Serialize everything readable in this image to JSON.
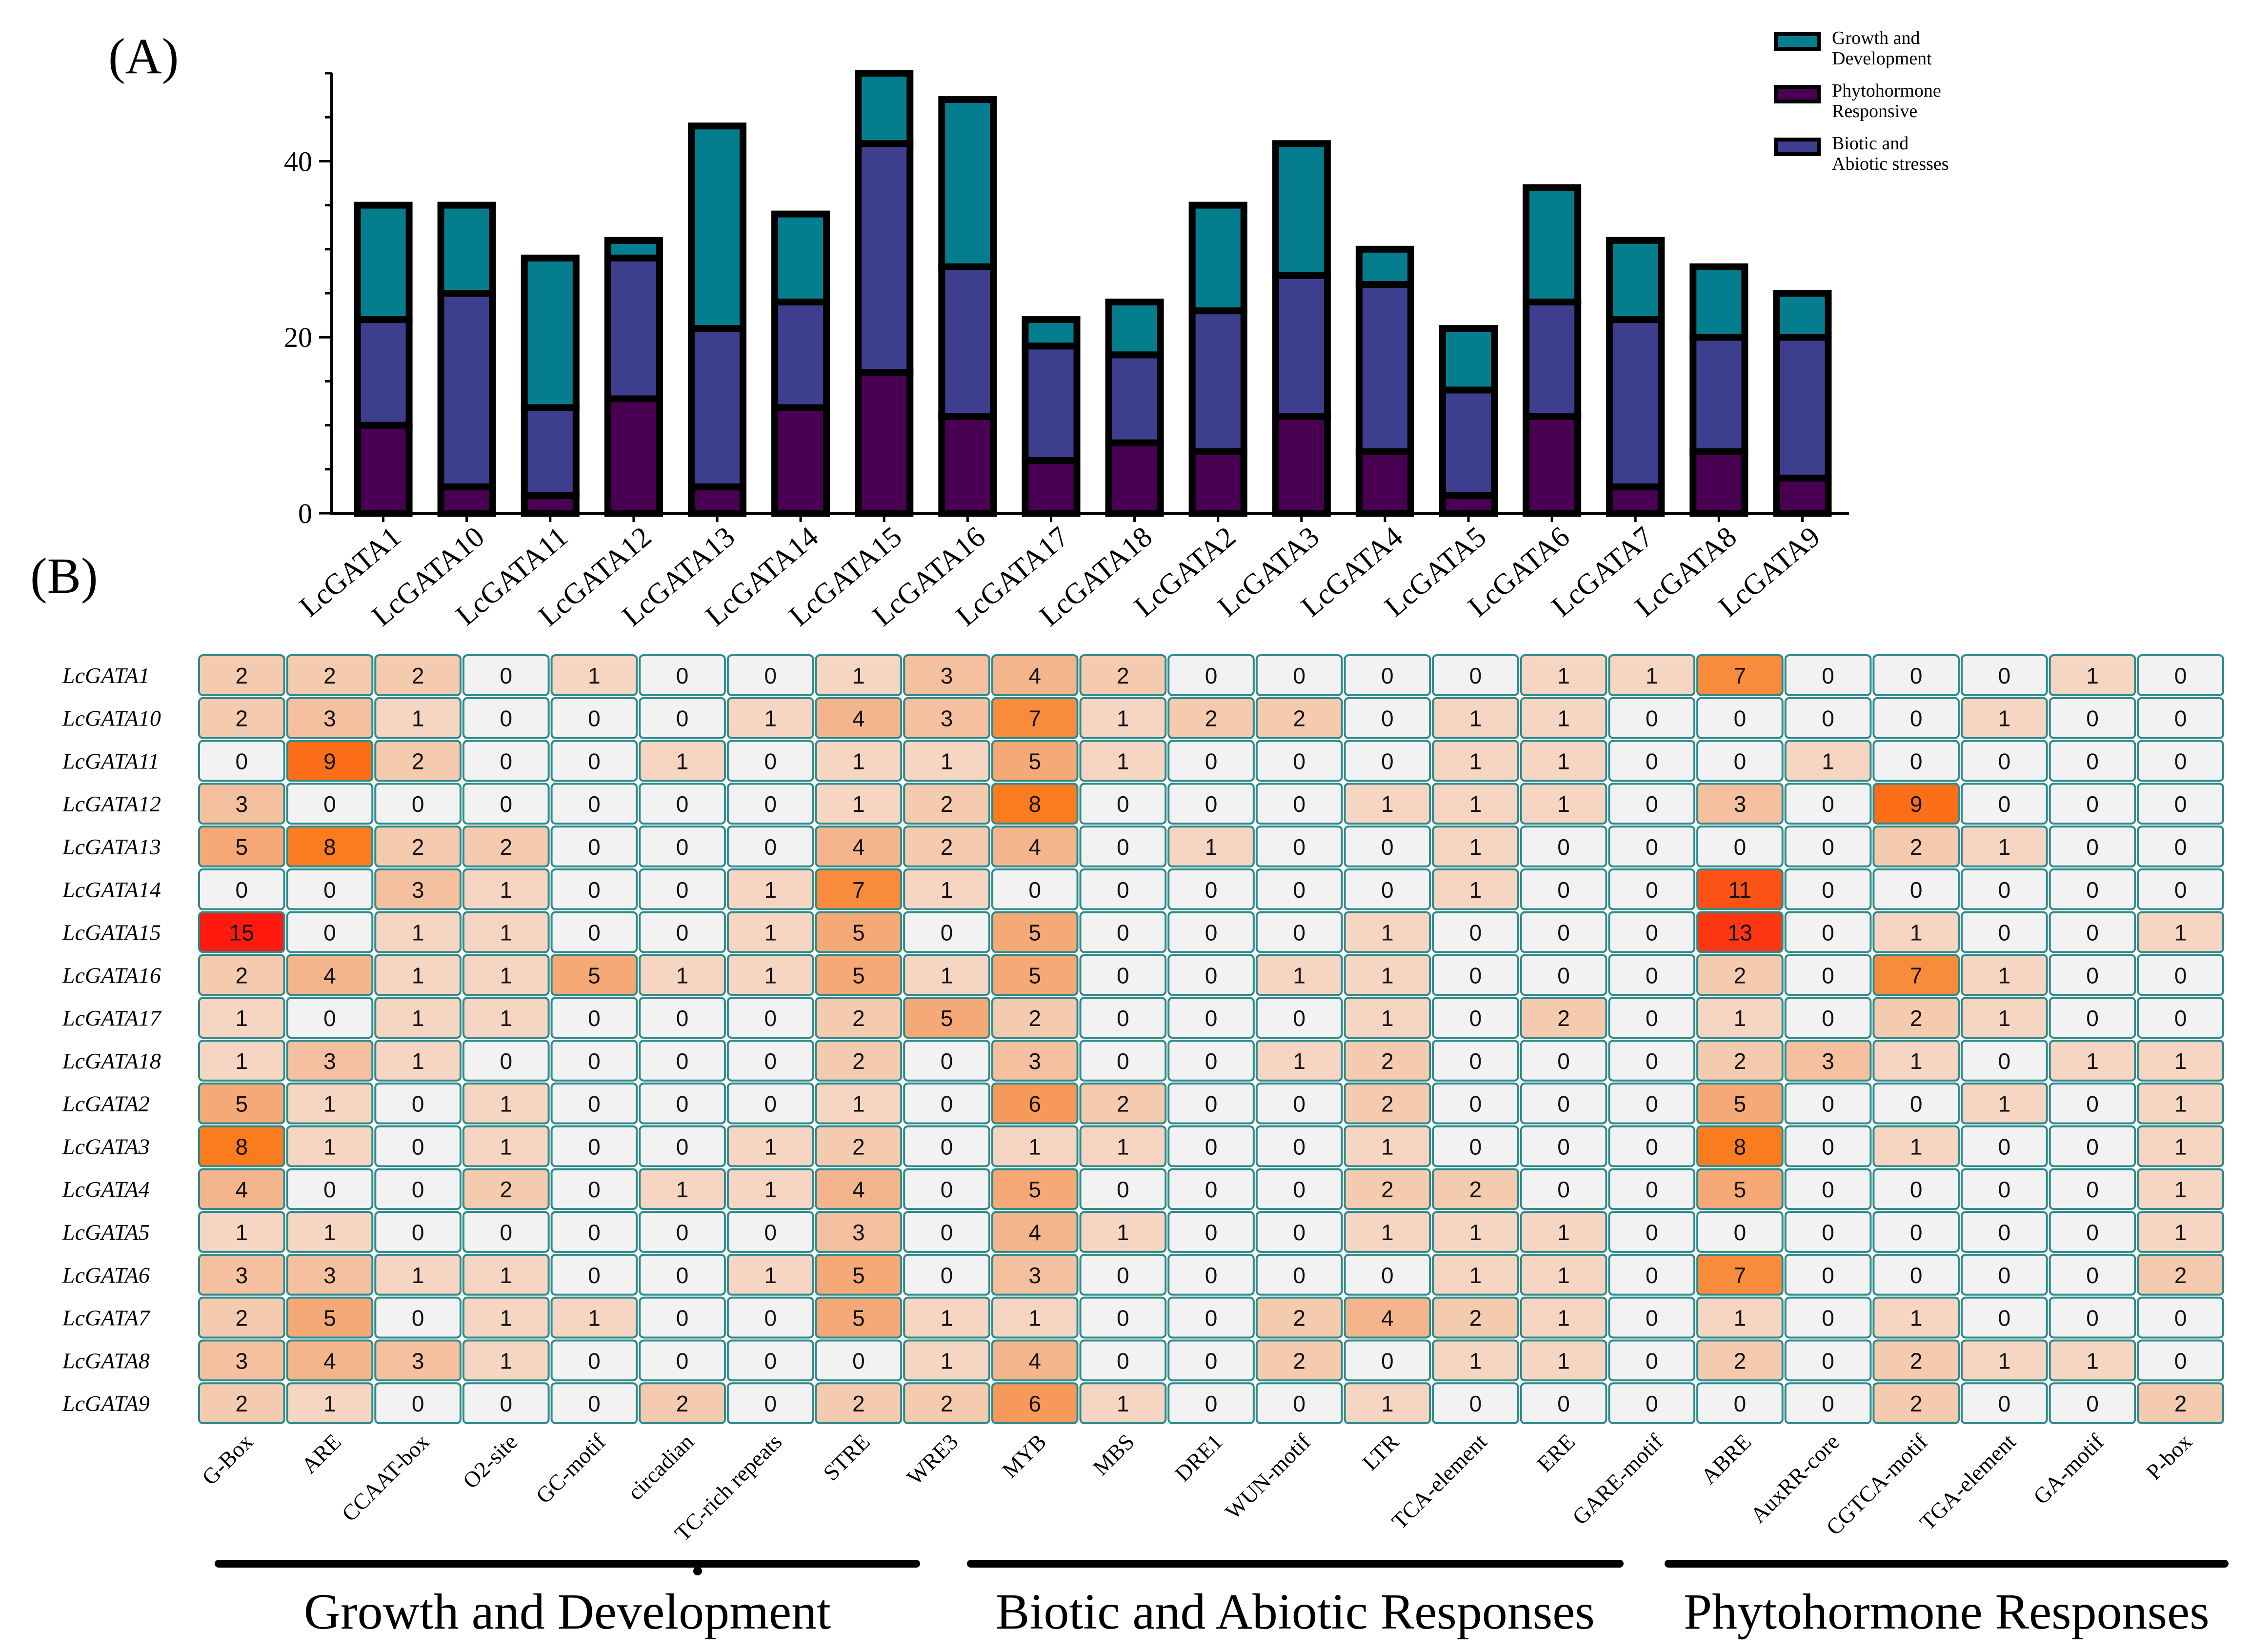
{
  "panel_a_label": "(A)",
  "panel_b_label": "(B)",
  "colors": {
    "growth": "#047e8e",
    "biotic": "#3d3f8e",
    "phyto": "#4a0052",
    "border": "#000000",
    "cell_border": "#2d8a8a",
    "heat_low": "#f2f2f2",
    "heat_high": "#ff1a10"
  },
  "chart_data": [
    {
      "type": "bar",
      "stacked": true,
      "title": "",
      "categories": [
        "LcGATA1",
        "LcGATA10",
        "LcGATA11",
        "LcGATA12",
        "LcGATA13",
        "LcGATA14",
        "LcGATA15",
        "LcGATA16",
        "LcGATA17",
        "LcGATA18",
        "LcGATA2",
        "LcGATA3",
        "LcGATA4",
        "LcGATA5",
        "LcGATA6",
        "LcGATA7",
        "LcGATA8",
        "LcGATA9"
      ],
      "series": [
        {
          "name": "Phytohormone Responsive",
          "key": "phyto",
          "values": [
            10,
            3,
            2,
            13,
            3,
            12,
            16,
            11,
            6,
            8,
            7,
            11,
            7,
            2,
            11,
            3,
            7,
            4
          ]
        },
        {
          "name": "Biotic and Abiotic stresses",
          "key": "biotic",
          "values": [
            12,
            22,
            10,
            16,
            18,
            12,
            26,
            17,
            13,
            10,
            16,
            16,
            19,
            12,
            13,
            19,
            13,
            16
          ]
        },
        {
          "name": "Growth and Development",
          "key": "growth",
          "values": [
            13,
            10,
            17,
            2,
            23,
            10,
            8,
            19,
            3,
            6,
            12,
            15,
            4,
            7,
            13,
            9,
            8,
            5
          ]
        }
      ],
      "legend": [
        {
          "key": "growth",
          "line1": "Growth and",
          "line2": "Development"
        },
        {
          "key": "phyto",
          "line1": "Phytohormone",
          "line2": "Responsive"
        },
        {
          "key": "biotic",
          "line1": "Biotic and",
          "line2": "Abiotic stresses"
        }
      ],
      "legend_position": "top-right",
      "yticks": [
        0,
        20,
        40
      ],
      "ylim": [
        0,
        50
      ],
      "xlabel": "",
      "ylabel": ""
    },
    {
      "type": "heatmap",
      "rows": [
        "LcGATA1",
        "LcGATA10",
        "LcGATA11",
        "LcGATA12",
        "LcGATA13",
        "LcGATA14",
        "LcGATA15",
        "LcGATA16",
        "LcGATA17",
        "LcGATA18",
        "LcGATA2",
        "LcGATA3",
        "LcGATA4",
        "LcGATA5",
        "LcGATA6",
        "LcGATA7",
        "LcGATA8",
        "LcGATA9"
      ],
      "columns": [
        "G-Box",
        "ARE",
        "CCAAT-box",
        "O2-site",
        "GC-motif",
        "circadian",
        "TC-rich repeats",
        "STRE",
        "WRE3",
        "MYB",
        "MBS",
        "DRE1",
        "WUN-motif",
        "LTR",
        "TCA-element",
        "ERE",
        "GARE-motif",
        "ABRE",
        "AuxRR-core",
        "CGTCA-motif",
        "TGA-element",
        "GA-motif",
        "P-box"
      ],
      "values": [
        [
          2,
          2,
          2,
          0,
          1,
          0,
          0,
          1,
          3,
          4,
          2,
          0,
          0,
          0,
          0,
          1,
          1,
          7,
          0,
          0,
          0,
          1,
          0
        ],
        [
          2,
          3,
          1,
          0,
          0,
          0,
          1,
          4,
          3,
          7,
          1,
          2,
          2,
          0,
          1,
          1,
          0,
          0,
          0,
          0,
          1,
          0,
          0
        ],
        [
          0,
          9,
          2,
          0,
          0,
          1,
          0,
          1,
          1,
          5,
          1,
          0,
          0,
          0,
          1,
          1,
          0,
          0,
          1,
          0,
          0,
          0,
          0
        ],
        [
          3,
          0,
          0,
          0,
          0,
          0,
          0,
          1,
          2,
          8,
          0,
          0,
          0,
          1,
          1,
          1,
          0,
          3,
          0,
          9,
          0,
          0,
          0
        ],
        [
          5,
          8,
          2,
          2,
          0,
          0,
          0,
          4,
          2,
          4,
          0,
          1,
          0,
          0,
          1,
          0,
          0,
          0,
          0,
          2,
          1,
          0,
          0
        ],
        [
          0,
          0,
          3,
          1,
          0,
          0,
          1,
          7,
          1,
          0,
          0,
          0,
          0,
          0,
          1,
          0,
          0,
          11,
          0,
          0,
          0,
          0,
          0
        ],
        [
          15,
          0,
          1,
          1,
          0,
          0,
          1,
          5,
          0,
          5,
          0,
          0,
          0,
          1,
          0,
          0,
          0,
          13,
          0,
          1,
          0,
          0,
          1
        ],
        [
          2,
          4,
          1,
          1,
          5,
          1,
          1,
          5,
          1,
          5,
          0,
          0,
          1,
          1,
          0,
          0,
          0,
          2,
          0,
          7,
          1,
          0,
          0
        ],
        [
          1,
          0,
          1,
          1,
          0,
          0,
          0,
          2,
          5,
          2,
          0,
          0,
          0,
          1,
          0,
          2,
          0,
          1,
          0,
          2,
          1,
          0,
          0
        ],
        [
          1,
          3,
          1,
          0,
          0,
          0,
          0,
          2,
          0,
          3,
          0,
          0,
          1,
          2,
          0,
          0,
          0,
          2,
          3,
          1,
          0,
          1,
          1
        ],
        [
          5,
          1,
          0,
          1,
          0,
          0,
          0,
          1,
          0,
          6,
          2,
          0,
          0,
          2,
          0,
          0,
          0,
          5,
          0,
          0,
          1,
          0,
          1
        ],
        [
          8,
          1,
          0,
          1,
          0,
          0,
          1,
          2,
          0,
          1,
          1,
          0,
          0,
          1,
          0,
          0,
          0,
          8,
          0,
          1,
          0,
          0,
          1
        ],
        [
          4,
          0,
          0,
          2,
          0,
          1,
          1,
          4,
          0,
          5,
          0,
          0,
          0,
          2,
          2,
          0,
          0,
          5,
          0,
          0,
          0,
          0,
          1
        ],
        [
          1,
          1,
          0,
          0,
          0,
          0,
          0,
          3,
          0,
          4,
          1,
          0,
          0,
          1,
          1,
          1,
          0,
          0,
          0,
          0,
          0,
          0,
          1
        ],
        [
          3,
          3,
          1,
          1,
          0,
          0,
          1,
          5,
          0,
          3,
          0,
          0,
          0,
          0,
          1,
          1,
          0,
          7,
          0,
          0,
          0,
          0,
          2
        ],
        [
          2,
          5,
          0,
          1,
          1,
          0,
          0,
          5,
          1,
          1,
          0,
          0,
          2,
          4,
          2,
          1,
          0,
          1,
          0,
          1,
          0,
          0,
          0
        ],
        [
          3,
          4,
          3,
          1,
          0,
          0,
          0,
          0,
          1,
          4,
          0,
          0,
          2,
          0,
          1,
          1,
          0,
          2,
          0,
          2,
          1,
          1,
          0
        ],
        [
          2,
          1,
          0,
          0,
          0,
          2,
          0,
          2,
          2,
          6,
          1,
          0,
          0,
          1,
          0,
          0,
          0,
          0,
          0,
          2,
          0,
          0,
          2
        ]
      ],
      "groups": [
        {
          "label": "Growth and Development"
        },
        {
          "label": "Biotic and Abiotic Responses"
        },
        {
          "label": "Phytohormone Responses"
        }
      ]
    }
  ]
}
